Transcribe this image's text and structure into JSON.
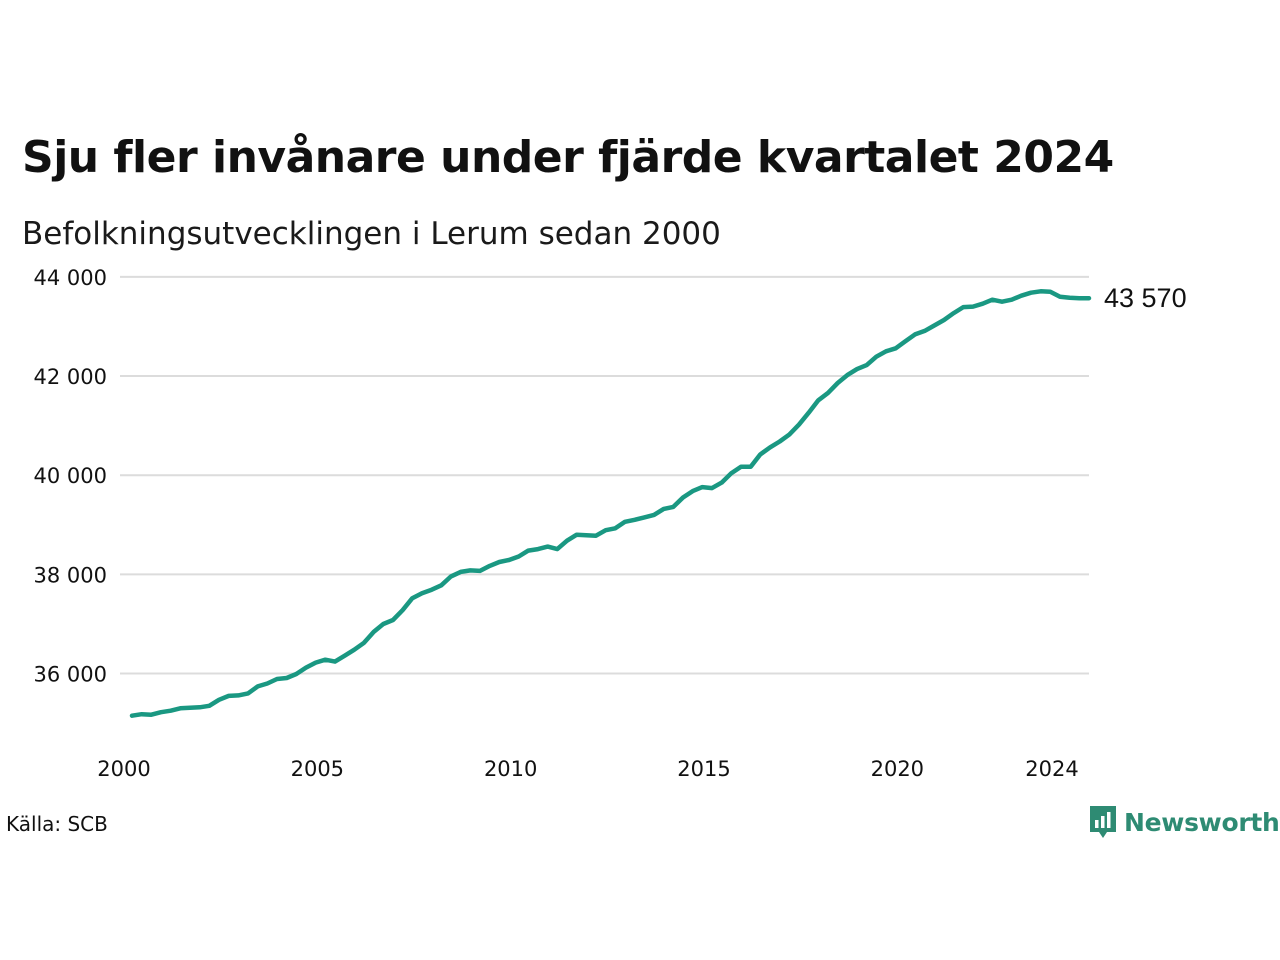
{
  "title": "Sju fler invånare under fjärde kvartalet 2024",
  "subtitle": "Befolkningsutvecklingen i Lerum sedan 2000",
  "source": "Källa: SCB",
  "brand": {
    "name": "Newsworthy",
    "icon": "newsworthy-logo-icon",
    "color": "#2e8b73"
  },
  "chart_data": {
    "type": "line",
    "ylim": [
      34700,
      44300
    ],
    "xlim": [
      2000,
      2024.75
    ],
    "grid": true,
    "line_color": "#1a9882",
    "y_ticks": [
      {
        "value": 36000,
        "label": "36 000"
      },
      {
        "value": 38000,
        "label": "38 000"
      },
      {
        "value": 40000,
        "label": "40 000"
      },
      {
        "value": 42000,
        "label": "42 000"
      },
      {
        "value": 44000,
        "label": "44 000"
      }
    ],
    "x_ticks": [
      {
        "value": 2000,
        "label": "2000"
      },
      {
        "value": 2005,
        "label": "2005"
      },
      {
        "value": 2010,
        "label": "2010"
      },
      {
        "value": 2015,
        "label": "2015"
      },
      {
        "value": 2020,
        "label": "2020"
      },
      {
        "value": 2024,
        "label": "2024"
      }
    ],
    "end_label": "43 570",
    "series": [
      {
        "x_start": 2000,
        "x_step": 0.25,
        "values": [
          35150,
          35180,
          35170,
          35220,
          35250,
          35300,
          35310,
          35320,
          35350,
          35470,
          35550,
          35560,
          35600,
          35740,
          35800,
          35890,
          35910,
          35990,
          36120,
          36220,
          36280,
          36240,
          36360,
          36480,
          36620,
          36840,
          37000,
          37080,
          37280,
          37520,
          37620,
          37690,
          37780,
          37960,
          38050,
          38080,
          38070,
          38170,
          38250,
          38290,
          38360,
          38480,
          38510,
          38560,
          38510,
          38680,
          38800,
          38790,
          38780,
          38890,
          38930,
          39060,
          39100,
          39150,
          39200,
          39320,
          39360,
          39550,
          39680,
          39760,
          39740,
          39850,
          40040,
          40170,
          40170,
          40420,
          40560,
          40680,
          40820,
          41020,
          41260,
          41510,
          41660,
          41860,
          42020,
          42140,
          42220,
          42390,
          42500,
          42560,
          42700,
          42840,
          42910,
          43020,
          43130,
          43270,
          43390,
          43400,
          43460,
          43540,
          43500,
          43540,
          43620,
          43680,
          43710,
          43700,
          43600,
          43580,
          43570,
          43570
        ]
      }
    ]
  }
}
